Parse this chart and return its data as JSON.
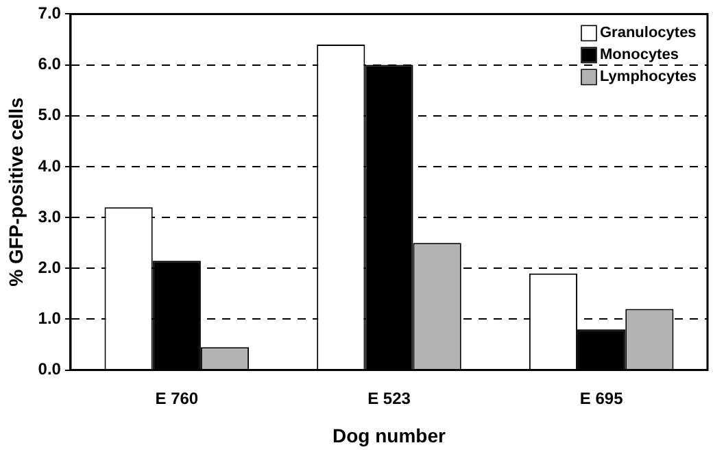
{
  "chart_data": {
    "type": "bar",
    "xlabel": "Dog number",
    "ylabel": "% GFP-positive cells",
    "categories": [
      "E 760",
      "E 523",
      "E 695"
    ],
    "series": [
      {
        "name": "Granulocytes",
        "color": "#ffffff",
        "values": [
          3.2,
          6.4,
          1.9
        ]
      },
      {
        "name": "Monocytes",
        "color": "#000000",
        "values": [
          2.15,
          6.0,
          0.8
        ]
      },
      {
        "name": "Lymphocytes",
        "color": "#b3b3b3",
        "values": [
          0.45,
          2.5,
          1.2
        ]
      }
    ],
    "ylim": [
      0,
      7
    ],
    "yticks": [
      {
        "value": 0,
        "label": "0.0"
      },
      {
        "value": 1,
        "label": "1.0"
      },
      {
        "value": 2,
        "label": "2.0"
      },
      {
        "value": 3,
        "label": "3.0"
      },
      {
        "value": 4,
        "label": "4.0"
      },
      {
        "value": 5,
        "label": "5.0"
      },
      {
        "value": 6,
        "label": "6.0"
      },
      {
        "value": 7,
        "label": "7.0"
      }
    ],
    "grid": "y",
    "legend": "top right"
  }
}
